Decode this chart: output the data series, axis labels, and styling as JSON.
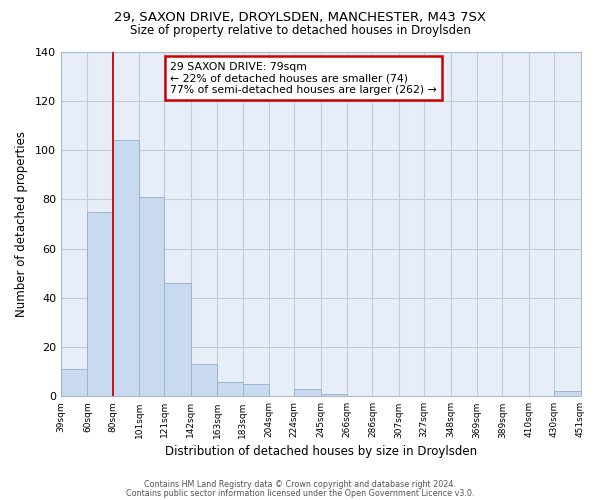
{
  "title1": "29, SAXON DRIVE, DROYLSDEN, MANCHESTER, M43 7SX",
  "title2": "Size of property relative to detached houses in Droylsden",
  "xlabel": "Distribution of detached houses by size in Droylsden",
  "ylabel": "Number of detached properties",
  "bar_values": [
    11,
    75,
    104,
    81,
    46,
    13,
    6,
    5,
    0,
    3,
    1,
    0,
    0,
    0,
    0,
    0,
    0,
    0,
    2
  ],
  "bar_left_edges": [
    39,
    60,
    80,
    101,
    121,
    142,
    163,
    183,
    204,
    224,
    245,
    266,
    286,
    307,
    327,
    348,
    369,
    389,
    430
  ],
  "bar_widths": [
    21,
    20,
    21,
    20,
    21,
    21,
    20,
    21,
    20,
    21,
    21,
    20,
    21,
    20,
    21,
    21,
    20,
    21,
    21
  ],
  "xtick_positions": [
    39,
    60,
    80,
    101,
    121,
    142,
    163,
    183,
    204,
    224,
    245,
    266,
    286,
    307,
    327,
    348,
    369,
    389,
    410,
    430,
    451
  ],
  "xtick_labels": [
    "39sqm",
    "60sqm",
    "80sqm",
    "101sqm",
    "121sqm",
    "142sqm",
    "163sqm",
    "183sqm",
    "204sqm",
    "224sqm",
    "245sqm",
    "266sqm",
    "286sqm",
    "307sqm",
    "327sqm",
    "348sqm",
    "369sqm",
    "389sqm",
    "410sqm",
    "430sqm",
    "451sqm"
  ],
  "xlim": [
    39,
    451
  ],
  "ylim": [
    0,
    140
  ],
  "yticks": [
    0,
    20,
    40,
    60,
    80,
    100,
    120,
    140
  ],
  "bar_color": "#c8d9f0",
  "bar_edge_color": "#9ab4d4",
  "plot_bg_color": "#e8eef8",
  "red_line_x": 80,
  "annotation_title": "29 SAXON DRIVE: 79sqm",
  "annotation_line1": "← 22% of detached houses are smaller (74)",
  "annotation_line2": "77% of semi-detached houses are larger (262) →",
  "annotation_box_color": "#ffffff",
  "annotation_box_edge": "#cc0000",
  "red_line_color": "#cc0000",
  "footer1": "Contains HM Land Registry data © Crown copyright and database right 2024.",
  "footer2": "Contains public sector information licensed under the Open Government Licence v3.0.",
  "background_color": "#ffffff",
  "grid_color": "#c0ccdd"
}
